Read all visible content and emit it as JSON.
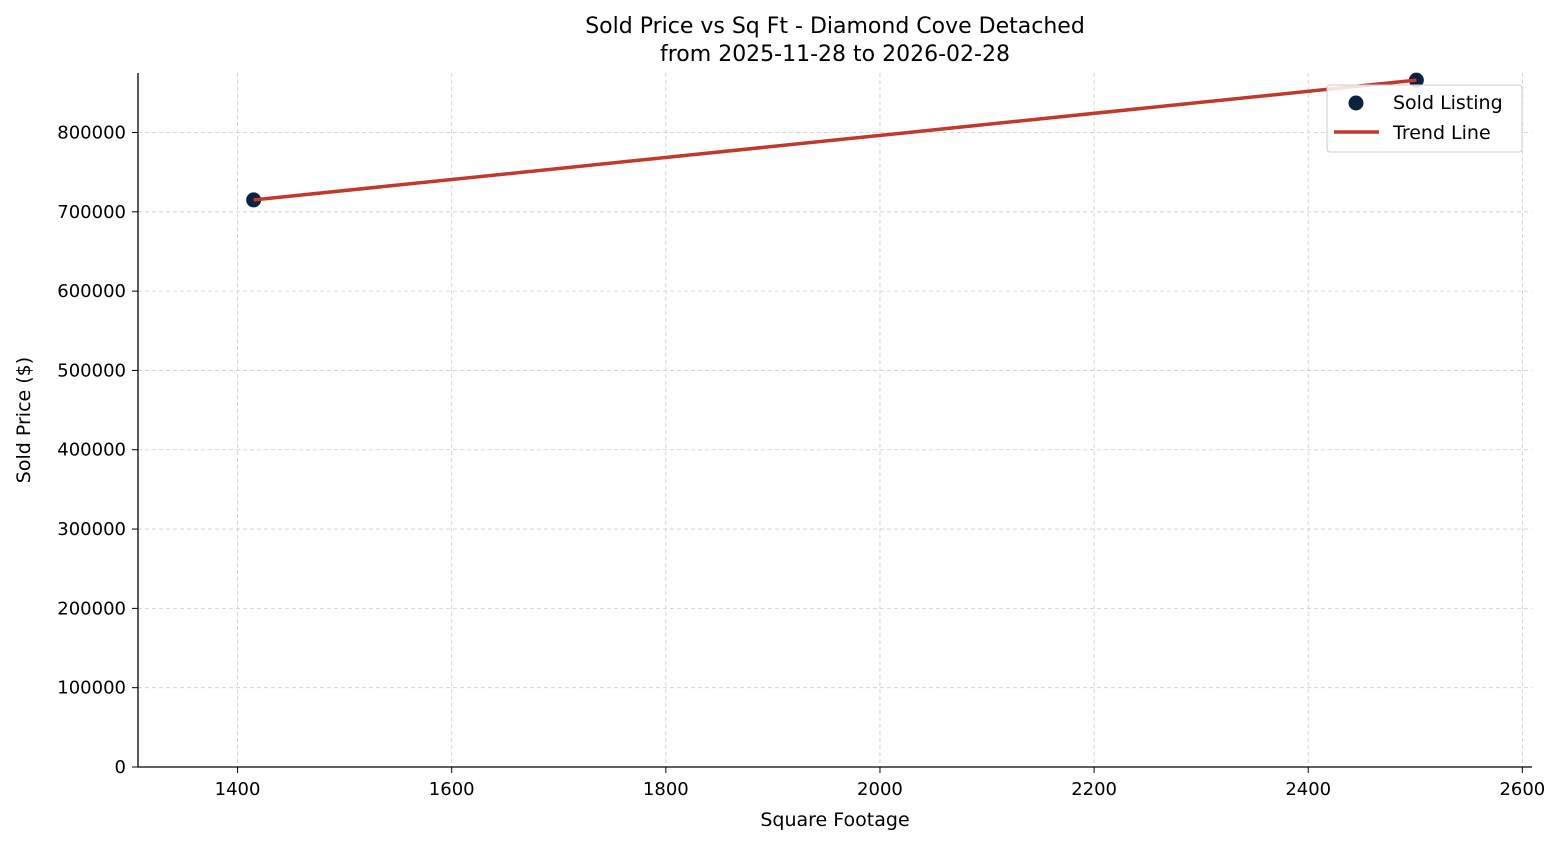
{
  "chart_data": {
    "type": "scatter",
    "title": "Sold Price vs Sq Ft - Diamond Cove Detached",
    "subtitle": "from 2025-11-28 to 2026-02-28",
    "xlabel": "Square Footage",
    "ylabel": "Sold Price ($)",
    "xlim": [
      1307,
      2609
    ],
    "ylim": [
      0,
      875000
    ],
    "xticks": [
      1400,
      1600,
      1800,
      2000,
      2200,
      2400,
      2600
    ],
    "yticks": [
      0,
      100000,
      200000,
      300000,
      400000,
      500000,
      600000,
      700000,
      800000
    ],
    "grid": true,
    "legend_placement": "top-right",
    "series": [
      {
        "name": "Sold Listing",
        "kind": "scatter",
        "color": "#0b2340",
        "points": [
          {
            "x": 1415,
            "y": 715000
          },
          {
            "x": 2501,
            "y": 866000
          }
        ]
      },
      {
        "name": "Trend Line",
        "kind": "line",
        "color": "#c0392b",
        "points": [
          {
            "x": 1415,
            "y": 715000
          },
          {
            "x": 2501,
            "y": 866000
          }
        ]
      }
    ]
  }
}
